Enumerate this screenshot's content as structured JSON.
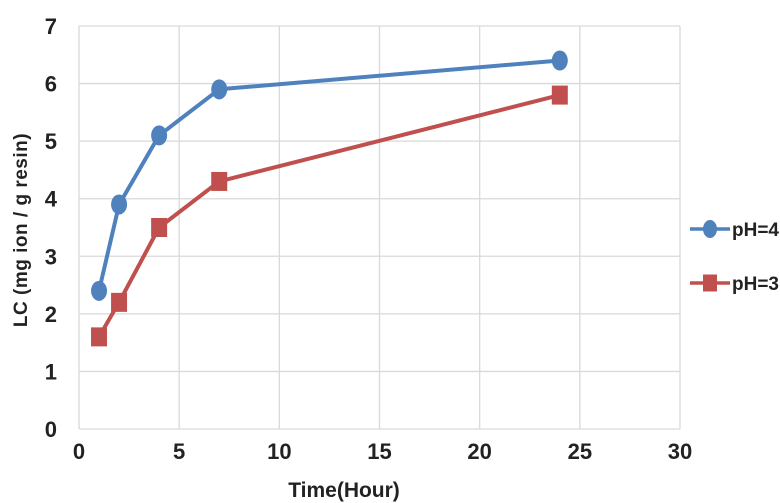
{
  "chart_data": {
    "type": "line",
    "xlabel": "Time(Hour)",
    "ylabel": "LC (mg ion / g resin)",
    "xlim": [
      0,
      30
    ],
    "ylim": [
      0,
      7
    ],
    "xticks": [
      0,
      5,
      10,
      15,
      20,
      25,
      30
    ],
    "yticks": [
      0,
      1,
      2,
      3,
      4,
      5,
      6,
      7
    ],
    "grid": true,
    "legend_position": "right",
    "series": [
      {
        "name": "pH=4",
        "color": "#4f81bd",
        "marker": "circle",
        "x": [
          1,
          2,
          4,
          7,
          24
        ],
        "y": [
          2.4,
          3.9,
          5.1,
          5.9,
          6.4
        ]
      },
      {
        "name": "pH=3",
        "color": "#c0504d",
        "marker": "square",
        "x": [
          1,
          2,
          4,
          7,
          24
        ],
        "y": [
          1.6,
          2.2,
          3.5,
          4.3,
          5.8
        ]
      }
    ]
  }
}
